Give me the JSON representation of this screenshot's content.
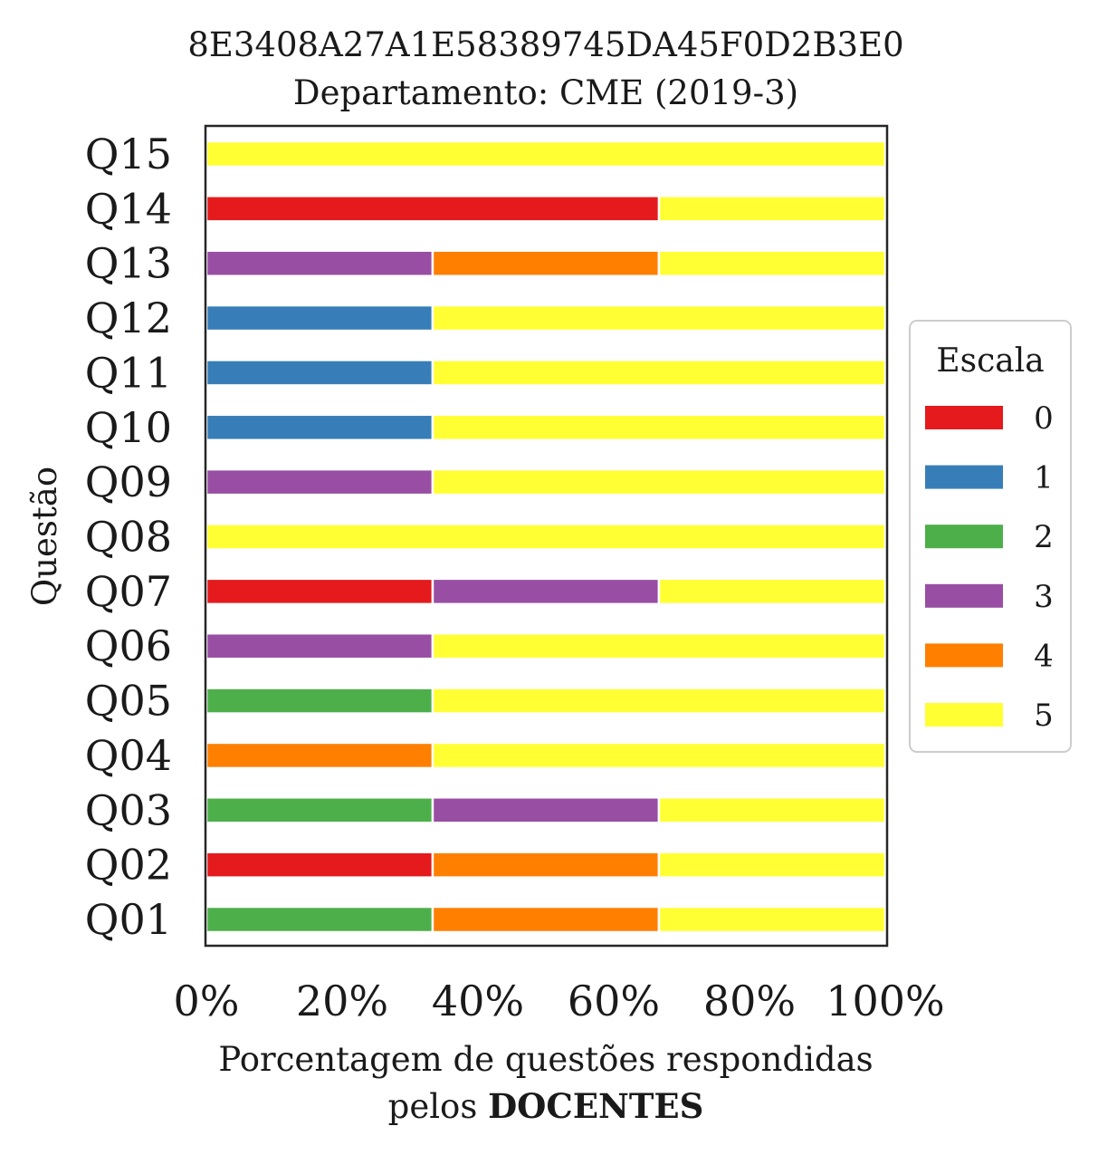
{
  "chart_data": {
    "type": "bar",
    "orientation": "horizontal",
    "stacked": true,
    "title": "8E3408A27A1E58389745DA45F0D2B3E0",
    "subtitle": "Departamento: CME (2019-3)",
    "xlabel_line1": "Porcentagem de questões respondidas",
    "xlabel_line2_prefix": "pelos ",
    "xlabel_line2_bold": "DOCENTES",
    "ylabel": "Questão",
    "xlim": [
      0,
      100
    ],
    "x_ticks": [
      "0%",
      "20%",
      "40%",
      "60%",
      "80%",
      "100%"
    ],
    "categories": [
      "Q01",
      "Q02",
      "Q03",
      "Q04",
      "Q05",
      "Q06",
      "Q07",
      "Q08",
      "Q09",
      "Q10",
      "Q11",
      "Q12",
      "Q13",
      "Q14",
      "Q15"
    ],
    "legend_title": "Escala",
    "legend_position": "center-right",
    "grid": false,
    "series": [
      {
        "name": "0",
        "color": "#e41a1c",
        "values": [
          0,
          33.33,
          0,
          0,
          0,
          0,
          33.33,
          0,
          0,
          0,
          0,
          0,
          0,
          66.67,
          0
        ]
      },
      {
        "name": "1",
        "color": "#377eb8",
        "values": [
          0,
          0,
          0,
          0,
          0,
          0,
          0,
          0,
          0,
          33.33,
          33.33,
          33.33,
          0,
          0,
          0
        ]
      },
      {
        "name": "2",
        "color": "#4daf4a",
        "values": [
          33.33,
          0,
          33.33,
          0,
          33.33,
          0,
          0,
          0,
          0,
          0,
          0,
          0,
          0,
          0,
          0
        ]
      },
      {
        "name": "3",
        "color": "#984ea3",
        "values": [
          0,
          0,
          33.33,
          0,
          0,
          33.33,
          33.33,
          0,
          33.33,
          0,
          0,
          0,
          33.33,
          0,
          0
        ]
      },
      {
        "name": "4",
        "color": "#ff7f00",
        "values": [
          33.33,
          33.33,
          0,
          33.33,
          0,
          0,
          0,
          0,
          0,
          0,
          0,
          0,
          33.33,
          0,
          0
        ]
      },
      {
        "name": "5",
        "color": "#ffff33",
        "values": [
          33.34,
          33.34,
          33.34,
          66.67,
          66.67,
          66.67,
          33.34,
          100,
          66.67,
          66.67,
          66.67,
          66.67,
          33.34,
          33.33,
          100
        ]
      }
    ]
  }
}
